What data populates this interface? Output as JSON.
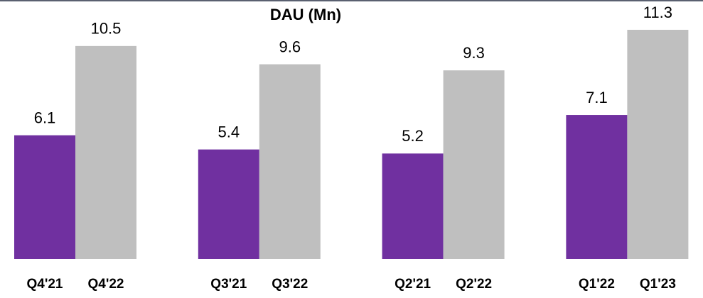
{
  "chart_data": {
    "type": "bar",
    "title": "DAU (Mn)",
    "groups": [
      {
        "categories": [
          "Q4'21",
          "Q4'22"
        ],
        "values": [
          6.1,
          10.5
        ]
      },
      {
        "categories": [
          "Q3'21",
          "Q3'22"
        ],
        "values": [
          5.4,
          9.6
        ]
      },
      {
        "categories": [
          "Q2'21",
          "Q2'22"
        ],
        "values": [
          5.2,
          9.3
        ]
      },
      {
        "categories": [
          "Q1'22",
          "Q1'23"
        ],
        "values": [
          7.1,
          11.3
        ]
      }
    ],
    "colors": [
      "#7030a0",
      "#bfbfbf"
    ]
  }
}
